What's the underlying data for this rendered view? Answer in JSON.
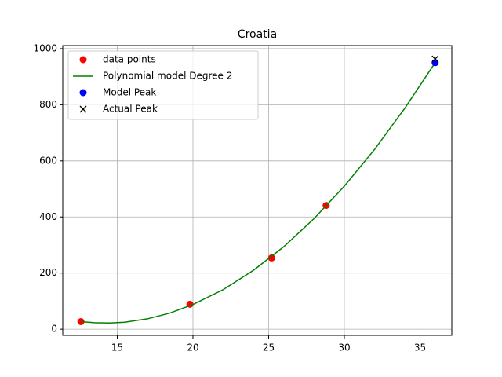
{
  "chart_data": {
    "type": "line",
    "title": "Croatia",
    "xlim": [
      11.4,
      37.1
    ],
    "ylim": [
      -22,
      1011
    ],
    "xticks": [
      15,
      20,
      25,
      30,
      35
    ],
    "yticks": [
      0,
      200,
      400,
      600,
      800,
      1000
    ],
    "grid": true,
    "legend": "upper left",
    "series": [
      {
        "name": "data points",
        "color": "#ff0000",
        "marker": "o",
        "line": false,
        "x": [
          12.6,
          19.8,
          25.2,
          28.8
        ],
        "values": [
          27,
          89,
          254,
          441
        ]
      },
      {
        "name": "Polynomial model Degree 2",
        "color": "#008000",
        "line": true,
        "x": [
          12.6,
          13.5,
          14.5,
          15.5,
          17,
          18.5,
          20,
          22,
          24,
          26,
          28,
          30,
          32,
          34,
          36
        ],
        "values": [
          27,
          23,
          22,
          25,
          37,
          58,
          88,
          141,
          210,
          294,
          394,
          510,
          641,
          788,
          950
        ]
      },
      {
        "name": "Model Peak",
        "color": "#0000ff",
        "marker": "o",
        "line": false,
        "x": [
          36
        ],
        "values": [
          950
        ]
      },
      {
        "name": "Actual Peak",
        "color": "#000000",
        "marker": "x",
        "line": false,
        "x": [
          36
        ],
        "values": [
          963
        ]
      }
    ]
  }
}
